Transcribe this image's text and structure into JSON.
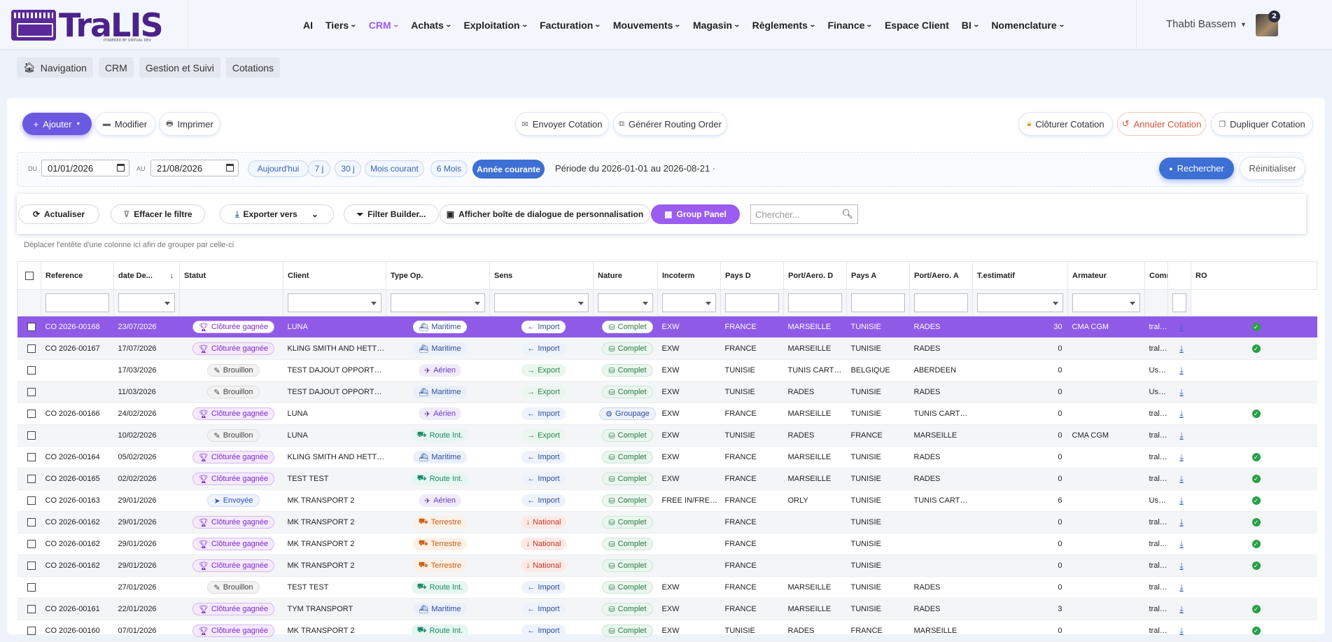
{
  "brand": {
    "name": "TraLIS",
    "tagline": "POWERED BY VIRTUAL DEV"
  },
  "nav": [
    "AI",
    "Tiers",
    "CRM",
    "Achats",
    "Exploitation",
    "Facturation",
    "Mouvements",
    "Magasin",
    "Règlements",
    "Finance",
    "Espace Client",
    "BI",
    "Nomenclature"
  ],
  "nav_dropdown": [
    false,
    true,
    true,
    true,
    true,
    true,
    true,
    true,
    true,
    true,
    false,
    true,
    true
  ],
  "nav_active": "CRM",
  "user": {
    "name": "Thabti Bassem",
    "notifications": "2"
  },
  "breadcrumb": [
    "Navigation",
    "CRM",
    "Gestion et Suivi",
    "Cotations"
  ],
  "actions": {
    "add": "Ajouter",
    "edit": "Modifier",
    "print": "Imprimer",
    "send": "Envoyer Cotation",
    "routing": "Générer Routing Order",
    "close": "Clôturer Cotation",
    "cancel": "Annuler Cotation",
    "duplicate": "Dupliquer Cotation"
  },
  "filters": {
    "du_label": "DU",
    "du_value": "01/01/2026",
    "au_label": "AU",
    "au_value": "21/08/2026",
    "presets": [
      "Aujourd'hui",
      "7 j",
      "30 j",
      "Mois courant",
      "6 Mois",
      "Année courante"
    ],
    "active_preset": "Année courante",
    "periode": "Période du 2026-01-01 au 2026-08-21 ·",
    "search": "Rechercher",
    "reset": "Réinitialiser"
  },
  "grid_toolbar": {
    "refresh": "Actualiser",
    "clear": "Effacer le filtre",
    "export": "Exporter vers",
    "builder": "Filter Builder...",
    "customize": "Afficher boîte de dialogue de personnalisation",
    "group": "Group Panel",
    "search_placeholder": "Chercher..."
  },
  "group_hint": "Déplacer l'entête d'une colonne ici afin de grouper par celle-ci",
  "columns": [
    "Reference",
    "date De...",
    "Statut",
    "Client",
    "Type Op.",
    "Sens",
    "Nature",
    "Incoterm",
    "Pays D",
    "Port/Aero. D",
    "Pays A",
    "Port/Aero. A",
    "T.estimatif",
    "Armateur",
    "Commercial",
    "",
    "RO"
  ],
  "rows": [
    {
      "ref": "CO 2026-00168",
      "date": "23/07/2026",
      "statut": "Clôturée gagnée",
      "client": "LUNA",
      "type": "Maritime",
      "sens": "Import",
      "nature": "Complet",
      "inco": "EXW",
      "paysD": "FRANCE",
      "portD": "MARSEILLE",
      "paysA": "TUNISIE",
      "portA": "RADES",
      "est": "30",
      "arm": "CMA CGM",
      "com": "tralis administrateur",
      "ro": true,
      "selected": true
    },
    {
      "ref": "CO 2026-00167",
      "date": "17/07/2026",
      "statut": "Clôturée gagnée",
      "client": "KLING SMITH AND HETTINGER",
      "type": "Maritime",
      "sens": "Import",
      "nature": "Complet",
      "inco": "EXW",
      "paysD": "FRANCE",
      "portD": "MARSEILLE",
      "paysA": "TUNISIE",
      "portA": "RADES",
      "est": "0",
      "arm": "",
      "com": "tralis administrateur",
      "ro": true
    },
    {
      "ref": "",
      "date": "17/03/2026",
      "statut": "Brouillon",
      "client": "TEST DAJOUT OPPORTUNITE",
      "type": "Aérien",
      "sens": "Export",
      "nature": "Complet",
      "inco": "EXW",
      "paysD": "TUNISIE",
      "portD": "TUNIS CARTHAGE",
      "paysA": "BELGIQUE",
      "portA": "ABERDEEN",
      "est": "0",
      "arm": "",
      "com": "User Tralis",
      "ro": false
    },
    {
      "ref": "",
      "date": "11/03/2026",
      "statut": "Brouillon",
      "client": "TEST DAJOUT OPPORTUNITE",
      "type": "Maritime",
      "sens": "Export",
      "nature": "Complet",
      "inco": "EXW",
      "paysD": "TUNISIE",
      "portD": "RADES",
      "paysA": "TUNISIE",
      "portA": "RADES",
      "est": "0",
      "arm": "",
      "com": "User Tralis",
      "ro": false
    },
    {
      "ref": "CO 2026-00166",
      "date": "24/02/2026",
      "statut": "Clôturée gagnée",
      "client": "LUNA",
      "type": "Aérien",
      "sens": "Import",
      "nature": "Groupage",
      "inco": "EXW",
      "paysD": "FRANCE",
      "portD": "MARSEILLE",
      "paysA": "TUNISIE",
      "portA": "TUNIS CARTHAGE",
      "est": "0",
      "arm": "",
      "com": "tralis administrateur",
      "ro": true
    },
    {
      "ref": "",
      "date": "10/02/2026",
      "statut": "Brouillon",
      "client": "LUNA",
      "type": "Route Int.",
      "sens": "Export",
      "nature": "Complet",
      "inco": "EXW",
      "paysD": "TUNISIE",
      "portD": "RADES",
      "paysA": "FRANCE",
      "portA": "MARSEILLE",
      "est": "0",
      "arm": "CMA CGM",
      "com": "tralis administrateur",
      "ro": false
    },
    {
      "ref": "CO 2026-00164",
      "date": "05/02/2026",
      "statut": "Clôturée gagnée",
      "client": "KLING SMITH AND HETTINGER",
      "type": "Maritime",
      "sens": "Import",
      "nature": "Complet",
      "inco": "EXW",
      "paysD": "FRANCE",
      "portD": "MARSEILLE",
      "paysA": "TUNISIE",
      "portA": "RADES",
      "est": "0",
      "arm": "",
      "com": "tralis administrateur",
      "ro": true
    },
    {
      "ref": "CO 2026-00165",
      "date": "02/02/2026",
      "statut": "Clôturée gagnée",
      "client": "TEST TEST",
      "type": "Route Int.",
      "sens": "Import",
      "nature": "Complet",
      "inco": "EXW",
      "paysD": "FRANCE",
      "portD": "MARSEILLE",
      "paysA": "TUNISIE",
      "portA": "RADES",
      "est": "0",
      "arm": "",
      "com": "tralis administrateur",
      "ro": true
    },
    {
      "ref": "CO 2026-00163",
      "date": "29/01/2026",
      "statut": "Envoyée",
      "client": "MK TRANSPORT 2",
      "type": "Aérien",
      "sens": "Import",
      "nature": "Complet",
      "inco": "FREE IN/FREE OUT",
      "paysD": "FRANCE",
      "portD": "ORLY",
      "paysA": "TUNISIE",
      "portA": "TUNIS CARTHAGE",
      "est": "6",
      "arm": "",
      "com": "User Tralis",
      "ro": true
    },
    {
      "ref": "CO 2026-00162",
      "date": "29/01/2026",
      "statut": "Clôturée gagnée",
      "client": "MK TRANSPORT 2",
      "type": "Terrestre",
      "sens": "National",
      "nature": "Complet",
      "inco": "",
      "paysD": "FRANCE",
      "portD": "",
      "paysA": "TUNISIE",
      "portA": "",
      "est": "0",
      "arm": "",
      "com": "tralis administrateur",
      "ro": true
    },
    {
      "ref": "CO 2026-00162",
      "date": "29/01/2026",
      "statut": "Clôturée gagnée",
      "client": "MK TRANSPORT 2",
      "type": "Terrestre",
      "sens": "National",
      "nature": "Complet",
      "inco": "",
      "paysD": "FRANCE",
      "portD": "",
      "paysA": "TUNISIE",
      "portA": "",
      "est": "0",
      "arm": "",
      "com": "tralis administrateur",
      "ro": true
    },
    {
      "ref": "CO 2026-00162",
      "date": "29/01/2026",
      "statut": "Clôturée gagnée",
      "client": "MK TRANSPORT 2",
      "type": "Terrestre",
      "sens": "National",
      "nature": "Complet",
      "inco": "",
      "paysD": "FRANCE",
      "portD": "",
      "paysA": "TUNISIE",
      "portA": "",
      "est": "0",
      "arm": "",
      "com": "tralis administrateur",
      "ro": true
    },
    {
      "ref": "",
      "date": "27/01/2026",
      "statut": "Brouillon",
      "client": "TEST TEST",
      "type": "Route Int.",
      "sens": "Import",
      "nature": "Complet",
      "inco": "EXW",
      "paysD": "FRANCE",
      "portD": "MARSEILLE",
      "paysA": "TUNISIE",
      "portA": "RADES",
      "est": "0",
      "arm": "",
      "com": "tralis administrateur",
      "ro": false
    },
    {
      "ref": "CO 2026-00161",
      "date": "22/01/2026",
      "statut": "Clôturée gagnée",
      "client": "TYM TRANSPORT",
      "type": "Maritime",
      "sens": "Import",
      "nature": "Complet",
      "inco": "EXW",
      "paysD": "FRANCE",
      "portD": "MARSEILLE",
      "paysA": "TUNISIE",
      "portA": "RADES",
      "est": "3",
      "arm": "",
      "com": "tralis administrateur",
      "ro": true
    },
    {
      "ref": "CO 2026-00160",
      "date": "07/01/2026",
      "statut": "Clôturée gagnée",
      "client": "MK TRANSPORT 2",
      "type": "Route Int.",
      "sens": "Import",
      "nature": "Complet",
      "inco": "EXW",
      "paysD": "TUNISIE",
      "portD": "RADES",
      "paysA": "FRANCE",
      "portA": "MARSEILLE",
      "est": "0",
      "arm": "",
      "com": "tralis administrateur",
      "ro": true
    }
  ]
}
